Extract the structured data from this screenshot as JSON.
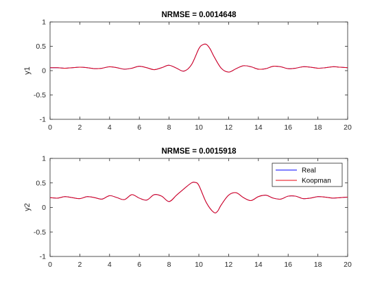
{
  "chart_data": [
    {
      "type": "line",
      "title": "NRMSE = 0.0014648",
      "xlabel": "",
      "ylabel": "y1",
      "xlim": [
        0,
        20
      ],
      "ylim": [
        -1,
        1
      ],
      "xticks": [
        "0",
        "2",
        "4",
        "6",
        "8",
        "10",
        "12",
        "14",
        "16",
        "18",
        "20"
      ],
      "yticks": [
        "1",
        "0.5",
        "0",
        "-0.5",
        "-1"
      ],
      "grid": false,
      "series": [
        {
          "name": "Real",
          "color": "#0000ff",
          "x": [
            0,
            0.5,
            1,
            1.5,
            2,
            2.5,
            3,
            3.5,
            4,
            4.5,
            5,
            5.5,
            6,
            6.5,
            7,
            7.5,
            8,
            8.5,
            9,
            9.5,
            10,
            10.25,
            10.5,
            10.75,
            11,
            11.5,
            12,
            12.5,
            13,
            13.5,
            14,
            14.5,
            15,
            15.5,
            16,
            16.5,
            17,
            17.5,
            18,
            18.5,
            19,
            19.5,
            20
          ],
          "y": [
            0.06,
            0.06,
            0.05,
            0.06,
            0.07,
            0.06,
            0.04,
            0.05,
            0.08,
            0.06,
            0.03,
            0.05,
            0.09,
            0.06,
            0.02,
            0.06,
            0.11,
            0.05,
            -0.01,
            0.12,
            0.45,
            0.53,
            0.54,
            0.45,
            0.3,
            0.05,
            -0.03,
            0.04,
            0.1,
            0.08,
            0.03,
            0.04,
            0.09,
            0.08,
            0.04,
            0.05,
            0.08,
            0.07,
            0.05,
            0.06,
            0.08,
            0.07,
            0.06
          ]
        },
        {
          "name": "Koopman",
          "color": "#e8000b",
          "x": [
            0,
            0.5,
            1,
            1.5,
            2,
            2.5,
            3,
            3.5,
            4,
            4.5,
            5,
            5.5,
            6,
            6.5,
            7,
            7.5,
            8,
            8.5,
            9,
            9.5,
            10,
            10.25,
            10.5,
            10.75,
            11,
            11.5,
            12,
            12.5,
            13,
            13.5,
            14,
            14.5,
            15,
            15.5,
            16,
            16.5,
            17,
            17.5,
            18,
            18.5,
            19,
            19.5,
            20
          ],
          "y": [
            0.06,
            0.06,
            0.05,
            0.06,
            0.07,
            0.06,
            0.04,
            0.05,
            0.08,
            0.06,
            0.03,
            0.05,
            0.09,
            0.06,
            0.02,
            0.06,
            0.11,
            0.05,
            -0.01,
            0.12,
            0.45,
            0.53,
            0.54,
            0.45,
            0.3,
            0.05,
            -0.03,
            0.04,
            0.1,
            0.08,
            0.03,
            0.04,
            0.09,
            0.08,
            0.04,
            0.05,
            0.08,
            0.07,
            0.05,
            0.06,
            0.08,
            0.07,
            0.06
          ]
        }
      ]
    },
    {
      "type": "line",
      "title": "NRMSE = 0.0015918",
      "xlabel": "",
      "ylabel": "y2",
      "xlim": [
        0,
        20
      ],
      "ylim": [
        -1,
        1
      ],
      "xticks": [
        "0",
        "2",
        "4",
        "6",
        "8",
        "10",
        "12",
        "14",
        "16",
        "18",
        "20"
      ],
      "yticks": [
        "1",
        "0.5",
        "0",
        "-0.5",
        "-1"
      ],
      "grid": false,
      "legend": {
        "position": "top-right",
        "entries": [
          "Real",
          "Koopman"
        ]
      },
      "series": [
        {
          "name": "Real",
          "color": "#0000ff",
          "x": [
            0,
            0.5,
            1,
            1.5,
            2,
            2.5,
            3,
            3.5,
            4,
            4.5,
            5,
            5.5,
            6,
            6.5,
            7,
            7.5,
            8,
            8.5,
            9,
            9.5,
            9.75,
            10,
            10.5,
            11,
            11.25,
            11.5,
            12,
            12.5,
            13,
            13.5,
            14,
            14.5,
            15,
            15.5,
            16,
            16.5,
            17,
            17.5,
            18,
            18.5,
            19,
            19.5,
            20
          ],
          "y": [
            0.2,
            0.19,
            0.22,
            0.2,
            0.18,
            0.22,
            0.2,
            0.17,
            0.24,
            0.2,
            0.16,
            0.26,
            0.19,
            0.15,
            0.26,
            0.23,
            0.12,
            0.25,
            0.38,
            0.5,
            0.51,
            0.45,
            0.1,
            -0.1,
            -0.08,
            0.05,
            0.25,
            0.3,
            0.2,
            0.14,
            0.22,
            0.25,
            0.19,
            0.17,
            0.23,
            0.23,
            0.18,
            0.19,
            0.22,
            0.21,
            0.19,
            0.2,
            0.21
          ]
        },
        {
          "name": "Koopman",
          "color": "#e8000b",
          "x": [
            0,
            0.5,
            1,
            1.5,
            2,
            2.5,
            3,
            3.5,
            4,
            4.5,
            5,
            5.5,
            6,
            6.5,
            7,
            7.5,
            8,
            8.5,
            9,
            9.5,
            9.75,
            10,
            10.5,
            11,
            11.25,
            11.5,
            12,
            12.5,
            13,
            13.5,
            14,
            14.5,
            15,
            15.5,
            16,
            16.5,
            17,
            17.5,
            18,
            18.5,
            19,
            19.5,
            20
          ],
          "y": [
            0.2,
            0.19,
            0.22,
            0.2,
            0.18,
            0.22,
            0.2,
            0.17,
            0.24,
            0.2,
            0.16,
            0.26,
            0.19,
            0.15,
            0.26,
            0.23,
            0.12,
            0.25,
            0.38,
            0.5,
            0.51,
            0.45,
            0.1,
            -0.1,
            -0.08,
            0.05,
            0.25,
            0.3,
            0.2,
            0.14,
            0.22,
            0.25,
            0.19,
            0.17,
            0.23,
            0.23,
            0.18,
            0.19,
            0.22,
            0.21,
            0.19,
            0.2,
            0.21
          ]
        }
      ]
    }
  ]
}
